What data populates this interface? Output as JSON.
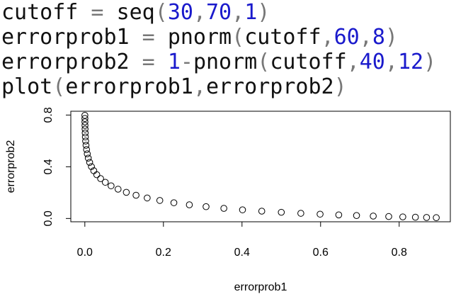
{
  "code": {
    "lines": [
      [
        "cutoff",
        " = ",
        "seq",
        "(",
        "30",
        ",",
        "70",
        ",",
        "1",
        ")"
      ],
      [
        "errorprob1",
        " = ",
        "pnorm",
        "(",
        "cutoff",
        ",",
        "60",
        ",",
        "8",
        ")"
      ],
      [
        "errorprob2",
        " = ",
        "1",
        "-",
        "pnorm",
        "(",
        "cutoff",
        ",",
        "40",
        ",",
        "12",
        ")"
      ],
      [
        "plot",
        "(",
        "errorprob1",
        ",",
        "errorprob2",
        ")"
      ]
    ]
  },
  "chart_data": {
    "type": "scatter",
    "x_label": "errorprob1",
    "y_label": "errorprob2",
    "x": [
      8.84e-05,
      0.000144,
      0.000233,
      0.000369,
      0.000577,
      0.000889,
      0.00135,
      0.00202,
      0.00298,
      0.00433,
      0.00621,
      0.00877,
      0.01222,
      0.01679,
      0.02275,
      0.0304,
      0.0401,
      0.0521,
      0.0668,
      0.0846,
      0.1056,
      0.1303,
      0.1587,
      0.1908,
      0.2266,
      0.266,
      0.3085,
      0.3538,
      0.4013,
      0.4503,
      0.5,
      0.5497,
      0.5987,
      0.6462,
      0.6915,
      0.734,
      0.7734,
      0.8092,
      0.8413,
      0.8697,
      0.8944
    ],
    "values": [
      0.7977,
      0.7734,
      0.7475,
      0.7201,
      0.6915,
      0.6615,
      0.6306,
      0.5987,
      0.5662,
      0.5332,
      0.5,
      0.4668,
      0.4338,
      0.4013,
      0.3694,
      0.3385,
      0.3085,
      0.2799,
      0.2525,
      0.2266,
      0.2023,
      0.1797,
      0.1587,
      0.1394,
      0.1217,
      0.1056,
      0.0912,
      0.0783,
      0.0668,
      0.0567,
      0.0478,
      0.0401,
      0.0334,
      0.0276,
      0.0228,
      0.0186,
      0.0151,
      0.0122,
      0.0098,
      0.0078,
      0.0062
    ],
    "xlim": [
      -0.0357,
      0.9302
    ],
    "ylim": [
      -0.0255,
      0.8294
    ],
    "xticks": [
      {
        "value": 0,
        "label": "0.0"
      },
      {
        "value": 0.2,
        "label": "0.2"
      },
      {
        "value": 0.4,
        "label": "0.4"
      },
      {
        "value": 0.6,
        "label": "0.6"
      },
      {
        "value": 0.8,
        "label": "0.8"
      }
    ],
    "yticks": [
      {
        "value": 0,
        "label": "0.0"
      },
      {
        "value": 0.4,
        "label": "0.4"
      },
      {
        "value": 0.8,
        "label": "0.8"
      }
    ],
    "color": "#000000"
  }
}
